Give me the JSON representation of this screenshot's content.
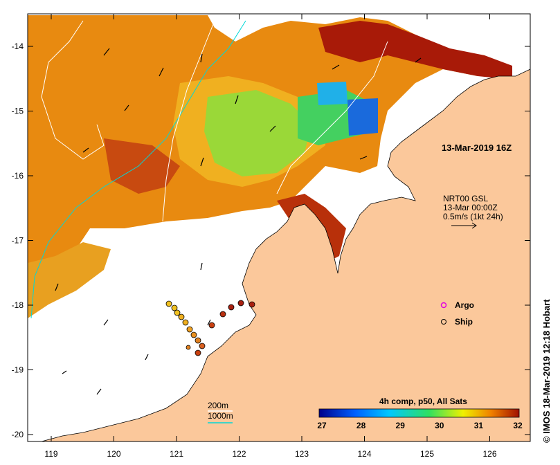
{
  "map": {
    "title_timestamp": "13-Mar-2019 16Z",
    "variable_label": "4h comp, p50, All Sats",
    "credit": "IMOS 18-Mar-2019 12:18 Hobart",
    "credit_symbol": "©",
    "longitude_ticks": [
      "119",
      "120",
      "121",
      "122",
      "123",
      "124",
      "125",
      "126"
    ],
    "latitude_ticks": [
      "-14",
      "-15",
      "-16",
      "-17",
      "-18",
      "-19",
      "-20"
    ],
    "current_note": {
      "line1": "NRT00 GSL",
      "line2": "13-Mar 00:00Z",
      "line3": "0.5m/s (1kt 24h)"
    },
    "legend": {
      "argo_label": "Argo",
      "ship_label": "Ship",
      "argo_color": "#e000e0"
    },
    "bathymetry": {
      "contour_200": "200m",
      "contour_1000": "1000m",
      "color_200": "#ffffff",
      "color_1000": "#00d8d8"
    },
    "colorbar": {
      "ticks": [
        "27",
        "28",
        "29",
        "30",
        "31",
        "32"
      ],
      "colors": [
        "#00008b",
        "#0060ff",
        "#00c8ff",
        "#30e060",
        "#f0f000",
        "#f08000",
        "#a01000"
      ]
    },
    "colors": {
      "land": "#fbc89b",
      "sst_warm": "#e88a10",
      "sst_hot": "#b02a08",
      "sst_mid": "#f0c020",
      "sst_cool": "#66dd44"
    }
  }
}
